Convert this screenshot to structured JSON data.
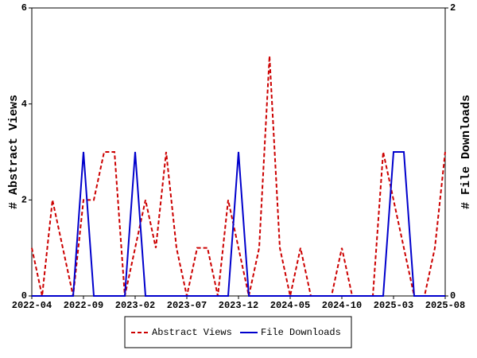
{
  "chart_data": {
    "type": "line",
    "categories": [
      "2022-04",
      null,
      null,
      null,
      null,
      "2022-09",
      null,
      null,
      null,
      null,
      "2023-02",
      null,
      null,
      null,
      null,
      "2023-07",
      null,
      null,
      null,
      null,
      "2023-12",
      null,
      null,
      null,
      null,
      "2024-05",
      null,
      null,
      null,
      null,
      "2024-10",
      null,
      null,
      null,
      null,
      "2025-03",
      null,
      null,
      null,
      null,
      "2025-08"
    ],
    "series": [
      {
        "name": "Abstract Views",
        "color": "#cc0000",
        "dashed": true,
        "values": [
          1,
          0,
          2,
          1,
          0,
          2,
          2,
          3,
          3,
          0,
          1,
          2,
          1,
          3,
          1,
          0,
          1,
          1,
          0,
          2,
          1,
          0,
          1,
          5,
          1,
          0,
          1,
          0,
          0,
          0,
          1,
          0,
          0,
          0,
          3,
          2,
          1,
          0,
          0,
          1,
          3
        ]
      },
      {
        "name": "File Downloads",
        "color": "#0000cc",
        "axis": "y2",
        "values": [
          0,
          0,
          0,
          0,
          0,
          1,
          0,
          0,
          0,
          0,
          1,
          0,
          0,
          0,
          0,
          0,
          0,
          0,
          0,
          0,
          1,
          0,
          0,
          0,
          0,
          0,
          0,
          0,
          0,
          0,
          0,
          0,
          0,
          0,
          0,
          1,
          1,
          0,
          0,
          0,
          0
        ]
      }
    ],
    "y_label": "# Abstract Views",
    "y2_label": "# File Downloads",
    "ylim": [
      0,
      6
    ],
    "yticks": [
      0,
      2,
      4,
      6
    ],
    "y2lim": [
      0,
      2
    ],
    "y2ticks": [
      0,
      2
    ]
  }
}
